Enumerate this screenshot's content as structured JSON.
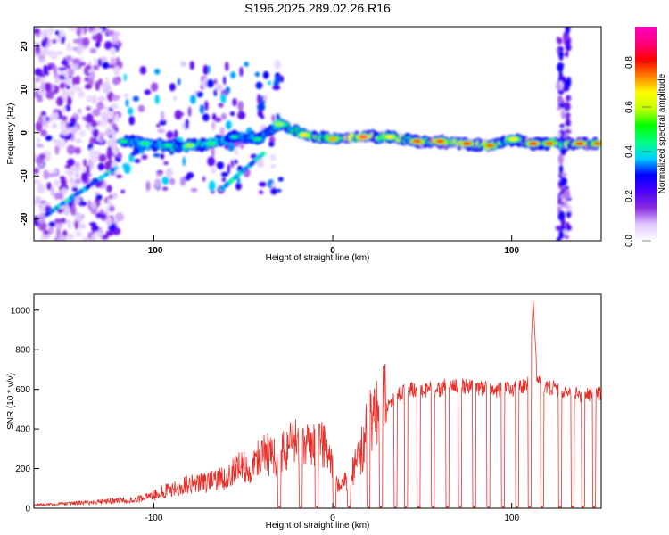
{
  "title": "S196.2025.289.02.26.R16",
  "colorbar": {
    "label": "Normalized spectral amplitude",
    "ticks": [
      "0.0",
      "0.2",
      "0.4",
      "0.6",
      "0.8"
    ],
    "range": [
      0,
      0.96
    ],
    "colormap": [
      "#ffffff",
      "#e0c8ff",
      "#8a2be2",
      "#4b00ff",
      "#0000ff",
      "#00d0ff",
      "#00ff80",
      "#00ff00",
      "#c0ff00",
      "#ffff00",
      "#ff8000",
      "#ff0000",
      "#ff0080",
      "#ff00c0"
    ]
  },
  "chart_data": [
    {
      "type": "heatmap",
      "title": "S196.2025.289.02.26.R16",
      "xlabel": "Height of straight line (km)",
      "ylabel": "Frequency (Hz)",
      "xlim": [
        -167,
        150
      ],
      "ylim": [
        -25,
        24.5
      ],
      "xticks": [
        "-100",
        "0",
        "100"
      ],
      "xtick_values": [
        -100,
        0,
        100
      ],
      "yticks": [
        "20",
        "10",
        "0",
        "-10",
        "-20"
      ],
      "ytick_values": [
        20,
        10,
        0,
        -10,
        -20
      ],
      "ridge": [
        {
          "x": -117,
          "freq": -2,
          "amp": 0.5
        },
        {
          "x": -105,
          "freq": -2.5,
          "amp": 0.55
        },
        {
          "x": -92,
          "freq": -3,
          "amp": 0.5
        },
        {
          "x": -80,
          "freq": -3,
          "amp": 0.6
        },
        {
          "x": -68,
          "freq": -2.5,
          "amp": 0.55
        },
        {
          "x": -55,
          "freq": -1,
          "amp": 0.45
        },
        {
          "x": -42,
          "freq": -1.5,
          "amp": 0.5
        },
        {
          "x": -30,
          "freq": 2,
          "amp": 0.6
        },
        {
          "x": -16,
          "freq": -0.5,
          "amp": 0.7
        },
        {
          "x": 0,
          "freq": -1.5,
          "amp": 0.75
        },
        {
          "x": 17,
          "freq": -1,
          "amp": 0.9
        },
        {
          "x": 32,
          "freq": -1,
          "amp": 0.7
        },
        {
          "x": 47,
          "freq": -2,
          "amp": 0.85
        },
        {
          "x": 60,
          "freq": -2,
          "amp": 0.85
        },
        {
          "x": 75,
          "freq": -2.5,
          "amp": 0.85
        },
        {
          "x": 88,
          "freq": -3,
          "amp": 0.8
        },
        {
          "x": 101,
          "freq": -1.5,
          "amp": 0.7
        },
        {
          "x": 112,
          "freq": -2.5,
          "amp": 0.85
        },
        {
          "x": 121,
          "freq": -2.5,
          "amp": 0.8
        },
        {
          "x": 138,
          "freq": -2.5,
          "amp": 0.85
        },
        {
          "x": 148,
          "freq": -2.5,
          "amp": 0.8
        }
      ]
    },
    {
      "type": "line",
      "xlabel": "Height of straight line (km)",
      "ylabel": "SNR (10 * v/v)",
      "xlim": [
        -167,
        150
      ],
      "ylim": [
        0,
        1080
      ],
      "xticks": [
        "-100",
        "0",
        "100"
      ],
      "xtick_values": [
        -100,
        0,
        100
      ],
      "yticks": [
        "0",
        "200",
        "400",
        "600",
        "800",
        "1000"
      ],
      "ytick_values": [
        0,
        200,
        400,
        600,
        800,
        1000
      ],
      "series": [
        {
          "name": "SNR",
          "color": "#e8302a",
          "x": [
            -167,
            -150,
            -140,
            -130,
            -120,
            -110,
            -100,
            -90,
            -80,
            -70,
            -60,
            -55,
            -50,
            -45,
            -40,
            -35,
            -30,
            -25,
            -20,
            -15,
            -10,
            -5,
            -2,
            2,
            5,
            10,
            15,
            20,
            25,
            30,
            35,
            40,
            45,
            50,
            55,
            60,
            65,
            70,
            75,
            80,
            85,
            90,
            95,
            100,
            105,
            110,
            112,
            114,
            118,
            125,
            130,
            140,
            150
          ],
          "values": [
            15,
            20,
            25,
            30,
            35,
            40,
            60,
            90,
            110,
            120,
            140,
            180,
            200,
            180,
            260,
            240,
            230,
            280,
            300,
            270,
            300,
            280,
            250,
            120,
            100,
            150,
            240,
            380,
            450,
            520,
            560,
            590,
            600,
            590,
            610,
            600,
            630,
            610,
            620,
            600,
            610,
            590,
            600,
            600,
            610,
            640,
            1060,
            680,
            620,
            600,
            590,
            570,
            580
          ]
        }
      ],
      "dropouts": [
        -30,
        -18,
        -9,
        1,
        9,
        20,
        27,
        35,
        41,
        48,
        56,
        64,
        71,
        79,
        87,
        95,
        103,
        110,
        117,
        127,
        134,
        140,
        146
      ]
    }
  ]
}
